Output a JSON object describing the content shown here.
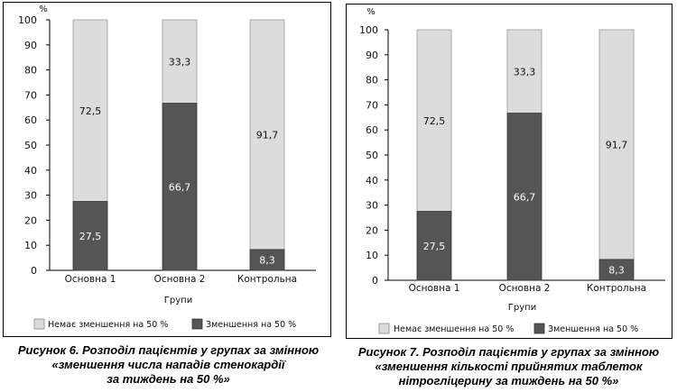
{
  "chart_data": [
    {
      "type": "bar",
      "stacked": true,
      "categories": [
        "Основна 1",
        "Основна 2",
        "Контрольна"
      ],
      "series": [
        {
          "name": "Зменшення на 50 %",
          "values": [
            27.5,
            66.7,
            8.3
          ],
          "color": "#555555"
        },
        {
          "name": "Немає зменшення на 50 %",
          "values": [
            72.5,
            33.3,
            91.7
          ],
          "color": "#dcdcdc"
        }
      ],
      "xlabel": "Групи",
      "ylabel": "%",
      "ylim": [
        0,
        100
      ],
      "yticks": [
        0,
        10,
        20,
        30,
        40,
        50,
        60,
        70,
        80,
        90,
        100
      ],
      "grid": false,
      "legend": "bottom",
      "legend_labels": [
        "Немає зменшення на 50 %",
        "Зменшення на 50 %"
      ],
      "caption": [
        "Рисунок 6. Розподіл пацієнтів у групах за змінною",
        "«зменшення числа нападів стенокардії",
        "за тиждень на 50 %»"
      ]
    },
    {
      "type": "bar",
      "stacked": true,
      "categories": [
        "Основна 1",
        "Основна 2",
        "Контрольна"
      ],
      "series": [
        {
          "name": "Зменшення на 50 %",
          "values": [
            27.5,
            66.7,
            8.3
          ],
          "color": "#555555"
        },
        {
          "name": "Немає зменшення на 50 %",
          "values": [
            72.5,
            33.3,
            91.7
          ],
          "color": "#dcdcdc"
        }
      ],
      "xlabel": "Групи",
      "ylabel": "%",
      "ylim": [
        0,
        100
      ],
      "yticks": [
        0,
        10,
        20,
        30,
        40,
        50,
        60,
        70,
        80,
        90,
        100
      ],
      "grid": false,
      "legend": "bottom",
      "legend_labels": [
        "Немає зменшення на 50 %",
        "Зменшення на 50 %"
      ],
      "caption": [
        "Рисунок 7. Розподіл пацієнтів у групах за змінною",
        "«зменшення кількості прийнятих таблеток",
        "нітрогліцерину за тиждень на 50 %»"
      ]
    }
  ]
}
